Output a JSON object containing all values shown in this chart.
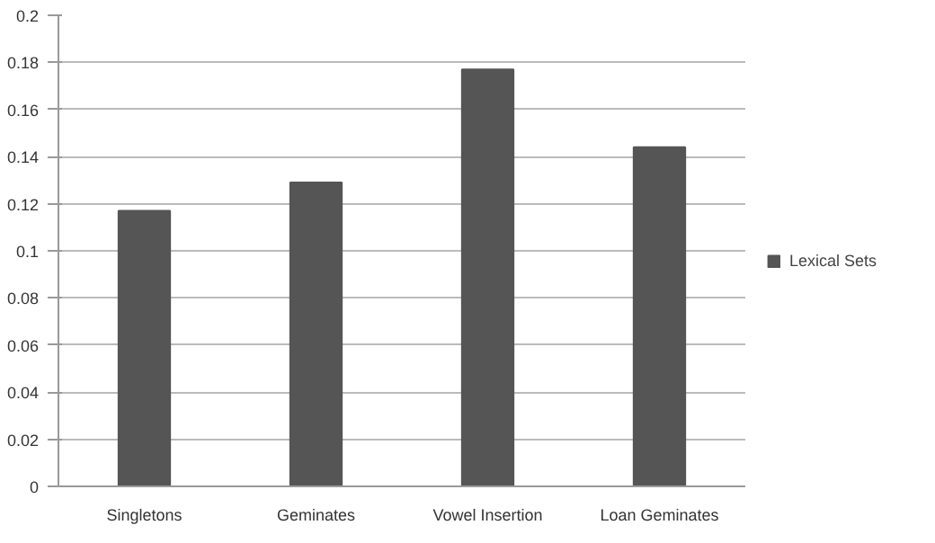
{
  "chart_data": {
    "type": "bar",
    "categories": [
      "Singletons",
      "Geminates",
      "Vowel Insertion",
      "Loan Geminates"
    ],
    "series": [
      {
        "name": "Lexical Sets",
        "color": "#555555",
        "values": [
          0.117,
          0.129,
          0.177,
          0.144
        ]
      }
    ],
    "ylim": [
      0,
      0.2
    ],
    "yticks": [
      {
        "value": 0,
        "label": "0"
      },
      {
        "value": 0.02,
        "label": "0.02"
      },
      {
        "value": 0.04,
        "label": "0.04"
      },
      {
        "value": 0.06,
        "label": "0.06"
      },
      {
        "value": 0.08,
        "label": "0.08"
      },
      {
        "value": 0.1,
        "label": "0.1"
      },
      {
        "value": 0.12,
        "label": "0.12"
      },
      {
        "value": 0.14,
        "label": "0.14"
      },
      {
        "value": 0.16,
        "label": "0.16"
      },
      {
        "value": 0.18,
        "label": "0.18"
      },
      {
        "value": 0.2,
        "label": "0.2"
      }
    ],
    "grid": "y",
    "legend": "right"
  }
}
